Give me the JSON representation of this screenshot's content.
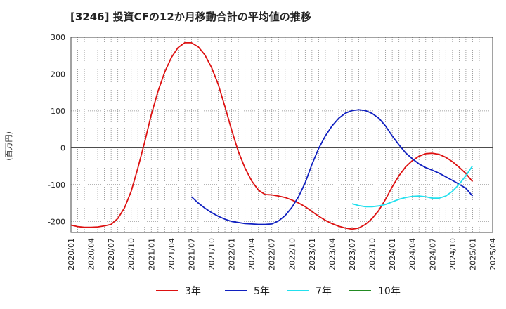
{
  "chart_data": {
    "type": "line",
    "title": "[3246]  投資CFの12か月移動合計の平均値の推移",
    "ylabel": "(百万円)",
    "xlabel": "",
    "ylim": [
      -230,
      300
    ],
    "yticks": [
      300,
      200,
      100,
      0,
      -100,
      -200
    ],
    "xlim": [
      "2020-01",
      "2025-04"
    ],
    "xticks": [
      "2020/01",
      "2020/04",
      "2020/07",
      "2020/10",
      "2021/01",
      "2021/04",
      "2021/07",
      "2021/10",
      "2022/01",
      "2022/04",
      "2022/07",
      "2022/10",
      "2023/01",
      "2023/04",
      "2023/07",
      "2023/10",
      "2024/01",
      "2024/04",
      "2024/07",
      "2024/10",
      "2025/01",
      "2025/04"
    ],
    "grid": true,
    "legend_position": "bottom",
    "series": [
      {
        "name": "3年",
        "color": "#dd1111",
        "x": [
          "2020-01",
          "2020-02",
          "2020-03",
          "2020-04",
          "2020-05",
          "2020-06",
          "2020-07",
          "2020-08",
          "2020-09",
          "2020-10",
          "2020-11",
          "2020-12",
          "2021-01",
          "2021-02",
          "2021-03",
          "2021-04",
          "2021-05",
          "2021-06",
          "2021-07",
          "2021-08",
          "2021-09",
          "2021-10",
          "2021-11",
          "2021-12",
          "2022-01",
          "2022-02",
          "2022-03",
          "2022-04",
          "2022-05",
          "2022-06",
          "2022-07",
          "2022-08",
          "2022-09",
          "2022-10",
          "2022-11",
          "2022-12",
          "2023-01",
          "2023-02",
          "2023-03",
          "2023-04",
          "2023-05",
          "2023-06",
          "2023-07",
          "2023-08",
          "2023-09",
          "2023-10",
          "2023-11",
          "2023-12",
          "2024-01",
          "2024-02",
          "2024-03",
          "2024-04",
          "2024-05",
          "2024-06",
          "2024-07",
          "2024-08",
          "2024-09",
          "2024-10",
          "2024-11",
          "2024-12",
          "2025-01"
        ],
        "values": [
          -210,
          -214,
          -216,
          -216,
          -215,
          -212,
          -208,
          -192,
          -163,
          -118,
          -55,
          15,
          90,
          153,
          205,
          245,
          272,
          285,
          285,
          274,
          252,
          218,
          172,
          112,
          48,
          -10,
          -55,
          -90,
          -115,
          -127,
          -128,
          -131,
          -135,
          -142,
          -150,
          -160,
          -173,
          -186,
          -197,
          -206,
          -213,
          -218,
          -221,
          -218,
          -208,
          -192,
          -170,
          -140,
          -106,
          -76,
          -52,
          -35,
          -23,
          -16,
          -15,
          -18,
          -26,
          -38,
          -53,
          -70,
          -92
        ]
      },
      {
        "name": "5年",
        "color": "#1020c0",
        "x": [
          "2021-07",
          "2021-08",
          "2021-09",
          "2021-10",
          "2021-11",
          "2021-12",
          "2022-01",
          "2022-02",
          "2022-03",
          "2022-04",
          "2022-05",
          "2022-06",
          "2022-07",
          "2022-08",
          "2022-09",
          "2022-10",
          "2022-11",
          "2022-12",
          "2023-01",
          "2023-02",
          "2023-03",
          "2023-04",
          "2023-05",
          "2023-06",
          "2023-07",
          "2023-08",
          "2023-09",
          "2023-10",
          "2023-11",
          "2023-12",
          "2024-01",
          "2024-02",
          "2024-03",
          "2024-04",
          "2024-05",
          "2024-06",
          "2024-07",
          "2024-08",
          "2024-09",
          "2024-10",
          "2024-11",
          "2024-12",
          "2025-01"
        ],
        "values": [
          -133,
          -150,
          -164,
          -176,
          -186,
          -194,
          -200,
          -203,
          -206,
          -207,
          -208,
          -208,
          -207,
          -199,
          -184,
          -162,
          -133,
          -95,
          -45,
          -2,
          32,
          59,
          80,
          94,
          101,
          103,
          101,
          93,
          80,
          59,
          32,
          8,
          -14,
          -30,
          -44,
          -54,
          -61,
          -69,
          -79,
          -89,
          -99,
          -110,
          -131
        ]
      },
      {
        "name": "7年",
        "color": "#22e0ee",
        "x": [
          "2023-07",
          "2023-08",
          "2023-09",
          "2023-10",
          "2023-11",
          "2023-12",
          "2024-01",
          "2024-02",
          "2024-03",
          "2024-04",
          "2024-05",
          "2024-06",
          "2024-07",
          "2024-08",
          "2024-09",
          "2024-10",
          "2024-11",
          "2024-12",
          "2025-01"
        ],
        "values": [
          -152,
          -157,
          -160,
          -160,
          -158,
          -154,
          -147,
          -140,
          -135,
          -132,
          -131,
          -133,
          -137,
          -137,
          -131,
          -118,
          -99,
          -76,
          -49
        ]
      },
      {
        "name": "10年",
        "color": "#228b22",
        "x": [],
        "values": []
      }
    ]
  }
}
